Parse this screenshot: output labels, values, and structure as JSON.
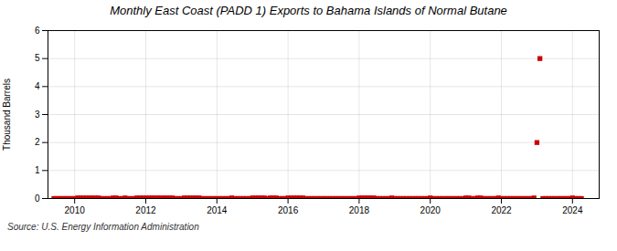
{
  "chart_data": {
    "type": "scatter",
    "title": "Monthly East Coast (PADD 1) Exports to Bahama Islands of Normal Butane",
    "ylabel": "Thousand Barrels",
    "caption": "Source: U.S. Energy Information Administration",
    "color": "#cc0000",
    "marker": "square",
    "grid": true,
    "xlim": [
      2009.25,
      2024.75
    ],
    "ylim": [
      0,
      6
    ],
    "xticks": [
      2010,
      2012,
      2014,
      2016,
      2018,
      2020,
      2022,
      2024
    ],
    "yticks": [
      0,
      1,
      2,
      3,
      4,
      5,
      6
    ],
    "x": [
      2009.417,
      2009.5,
      2009.583,
      2009.667,
      2009.75,
      2009.833,
      2009.917,
      2010.0,
      2010.083,
      2010.167,
      2010.25,
      2010.333,
      2010.417,
      2010.5,
      2010.583,
      2010.667,
      2010.75,
      2010.833,
      2010.917,
      2011.0,
      2011.083,
      2011.167,
      2011.25,
      2011.333,
      2011.417,
      2011.5,
      2011.583,
      2011.667,
      2011.75,
      2011.833,
      2011.917,
      2012.0,
      2012.083,
      2012.167,
      2012.25,
      2012.333,
      2012.417,
      2012.5,
      2012.583,
      2012.667,
      2012.75,
      2012.833,
      2012.917,
      2013.0,
      2013.083,
      2013.167,
      2013.25,
      2013.333,
      2013.417,
      2013.5,
      2013.583,
      2013.667,
      2013.75,
      2013.833,
      2013.917,
      2014.0,
      2014.083,
      2014.167,
      2014.25,
      2014.333,
      2014.417,
      2014.5,
      2014.583,
      2014.667,
      2014.75,
      2014.833,
      2014.917,
      2015.0,
      2015.083,
      2015.167,
      2015.25,
      2015.333,
      2015.417,
      2015.5,
      2015.583,
      2015.667,
      2015.75,
      2015.833,
      2015.917,
      2016.0,
      2016.083,
      2016.167,
      2016.25,
      2016.333,
      2016.417,
      2016.5,
      2016.583,
      2016.667,
      2016.75,
      2016.833,
      2016.917,
      2017.0,
      2017.083,
      2017.167,
      2017.25,
      2017.333,
      2017.417,
      2017.5,
      2017.583,
      2017.667,
      2017.75,
      2017.833,
      2017.917,
      2018.0,
      2018.083,
      2018.167,
      2018.25,
      2018.333,
      2018.417,
      2018.5,
      2018.583,
      2018.667,
      2018.75,
      2018.833,
      2018.917,
      2019.0,
      2019.083,
      2019.167,
      2019.25,
      2019.333,
      2019.417,
      2019.5,
      2019.583,
      2019.667,
      2019.75,
      2019.833,
      2019.917,
      2020.0,
      2020.083,
      2020.167,
      2020.25,
      2020.333,
      2020.417,
      2020.5,
      2020.583,
      2020.667,
      2020.75,
      2020.833,
      2020.917,
      2021.0,
      2021.083,
      2021.167,
      2021.25,
      2021.333,
      2021.417,
      2021.5,
      2021.583,
      2021.667,
      2021.75,
      2021.833,
      2021.917,
      2022.0,
      2022.083,
      2022.167,
      2022.25,
      2022.333,
      2022.417,
      2022.5,
      2022.583,
      2022.667,
      2022.75,
      2022.833,
      2022.917,
      2023.0,
      2023.083,
      2023.167,
      2023.25,
      2023.333,
      2023.417,
      2023.5,
      2023.583,
      2023.667,
      2023.75,
      2023.833,
      2023.917,
      2024.0,
      2024.083,
      2024.167,
      2024.25
    ],
    "values": [
      0,
      0,
      0,
      0,
      0,
      0,
      0,
      0,
      0.02,
      0.02,
      0.02,
      0.02,
      0.02,
      0.02,
      0.02,
      0.02,
      0,
      0,
      0,
      0,
      0.02,
      0.02,
      0,
      0,
      0.02,
      0,
      0,
      0,
      0.02,
      0.02,
      0.02,
      0.02,
      0.02,
      0.02,
      0.02,
      0.02,
      0.02,
      0.02,
      0.02,
      0.02,
      0.02,
      0,
      0,
      0,
      0.02,
      0.02,
      0.02,
      0.02,
      0.02,
      0.02,
      0,
      0,
      0,
      0,
      0,
      0,
      0,
      0,
      0,
      0,
      0.02,
      0,
      0,
      0,
      0,
      0,
      0,
      0.02,
      0.02,
      0.02,
      0.02,
      0.02,
      0,
      0.02,
      0.02,
      0.02,
      0,
      0,
      0,
      0.02,
      0.02,
      0.02,
      0.02,
      0.02,
      0.02,
      0,
      0,
      0,
      0,
      0,
      0,
      0,
      0,
      0,
      0,
      0,
      0,
      0,
      0,
      0,
      0,
      0,
      0,
      0.02,
      0.02,
      0.02,
      0.02,
      0.02,
      0.02,
      0,
      0,
      0,
      0,
      0,
      0.02,
      0,
      0,
      0,
      0,
      0,
      0,
      0,
      0,
      0,
      0,
      0,
      0,
      0.02,
      0,
      0,
      0,
      0,
      0,
      0,
      0,
      0,
      0,
      0,
      0,
      0.02,
      0.02,
      0,
      0,
      0.02,
      0.02,
      0,
      0,
      0,
      0,
      0,
      0.02,
      0,
      0,
      0,
      0,
      0,
      0,
      0,
      0,
      0,
      0,
      0,
      0.02,
      2.0,
      5.0,
      0,
      0,
      0,
      0,
      0,
      0,
      0,
      0,
      0,
      0,
      0.02,
      0,
      0,
      0
    ]
  }
}
